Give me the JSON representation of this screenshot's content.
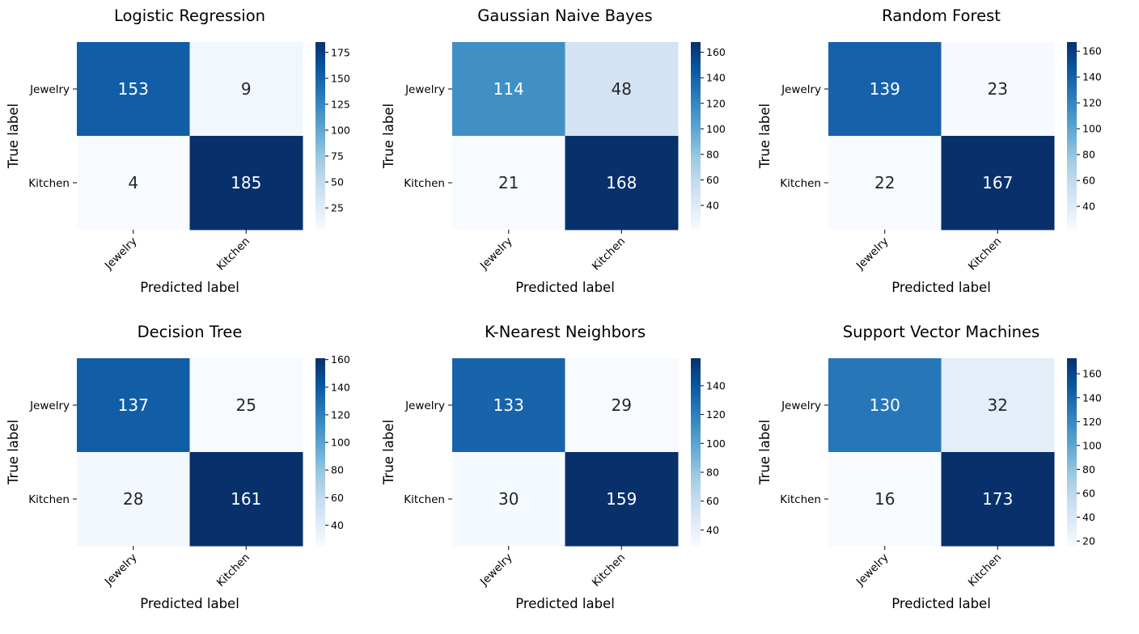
{
  "chart_data": [
    {
      "type": "heatmap",
      "title": "Logistic Regression",
      "xlabel": "Predicted label",
      "ylabel": "True label",
      "categories": [
        "Jewelry",
        "Kitchen"
      ],
      "matrix": [
        [
          153,
          9
        ],
        [
          4,
          185
        ]
      ],
      "colormap": "Blues",
      "colorbar_ticks": [
        "25",
        "50",
        "75",
        "100",
        "125",
        "150",
        "175"
      ]
    },
    {
      "type": "heatmap",
      "title": "Gaussian Naive Bayes",
      "xlabel": "Predicted label",
      "ylabel": "True label",
      "categories": [
        "Jewelry",
        "Kitchen"
      ],
      "matrix": [
        [
          114,
          48
        ],
        [
          21,
          168
        ]
      ],
      "colormap": "Blues",
      "colorbar_ticks": [
        "40",
        "60",
        "80",
        "100",
        "120",
        "140",
        "160"
      ]
    },
    {
      "type": "heatmap",
      "title": "Random Forest",
      "xlabel": "Predicted label",
      "ylabel": "True label",
      "categories": [
        "Jewelry",
        "Kitchen"
      ],
      "matrix": [
        [
          139,
          23
        ],
        [
          22,
          167
        ]
      ],
      "colormap": "Blues",
      "colorbar_ticks": [
        "40",
        "60",
        "80",
        "100",
        "120",
        "140",
        "160"
      ]
    },
    {
      "type": "heatmap",
      "title": "Decision Tree",
      "xlabel": "Predicted label",
      "ylabel": "True label",
      "categories": [
        "Jewelry",
        "Kitchen"
      ],
      "matrix": [
        [
          137,
          25
        ],
        [
          28,
          161
        ]
      ],
      "colormap": "Blues",
      "colorbar_ticks": [
        "40",
        "60",
        "80",
        "100",
        "120",
        "140",
        "160"
      ]
    },
    {
      "type": "heatmap",
      "title": "K-Nearest Neighbors",
      "xlabel": "Predicted label",
      "ylabel": "True label",
      "categories": [
        "Jewelry",
        "Kitchen"
      ],
      "matrix": [
        [
          133,
          29
        ],
        [
          30,
          159
        ]
      ],
      "colormap": "Blues",
      "colorbar_ticks": [
        "40",
        "60",
        "80",
        "100",
        "120",
        "140"
      ]
    },
    {
      "type": "heatmap",
      "title": "Support Vector Machines",
      "xlabel": "Predicted label",
      "ylabel": "True label",
      "categories": [
        "Jewelry",
        "Kitchen"
      ],
      "matrix": [
        [
          130,
          32
        ],
        [
          16,
          173
        ]
      ],
      "colormap": "Blues",
      "colorbar_ticks": [
        "20",
        "40",
        "60",
        "80",
        "100",
        "120",
        "140",
        "160"
      ]
    }
  ]
}
